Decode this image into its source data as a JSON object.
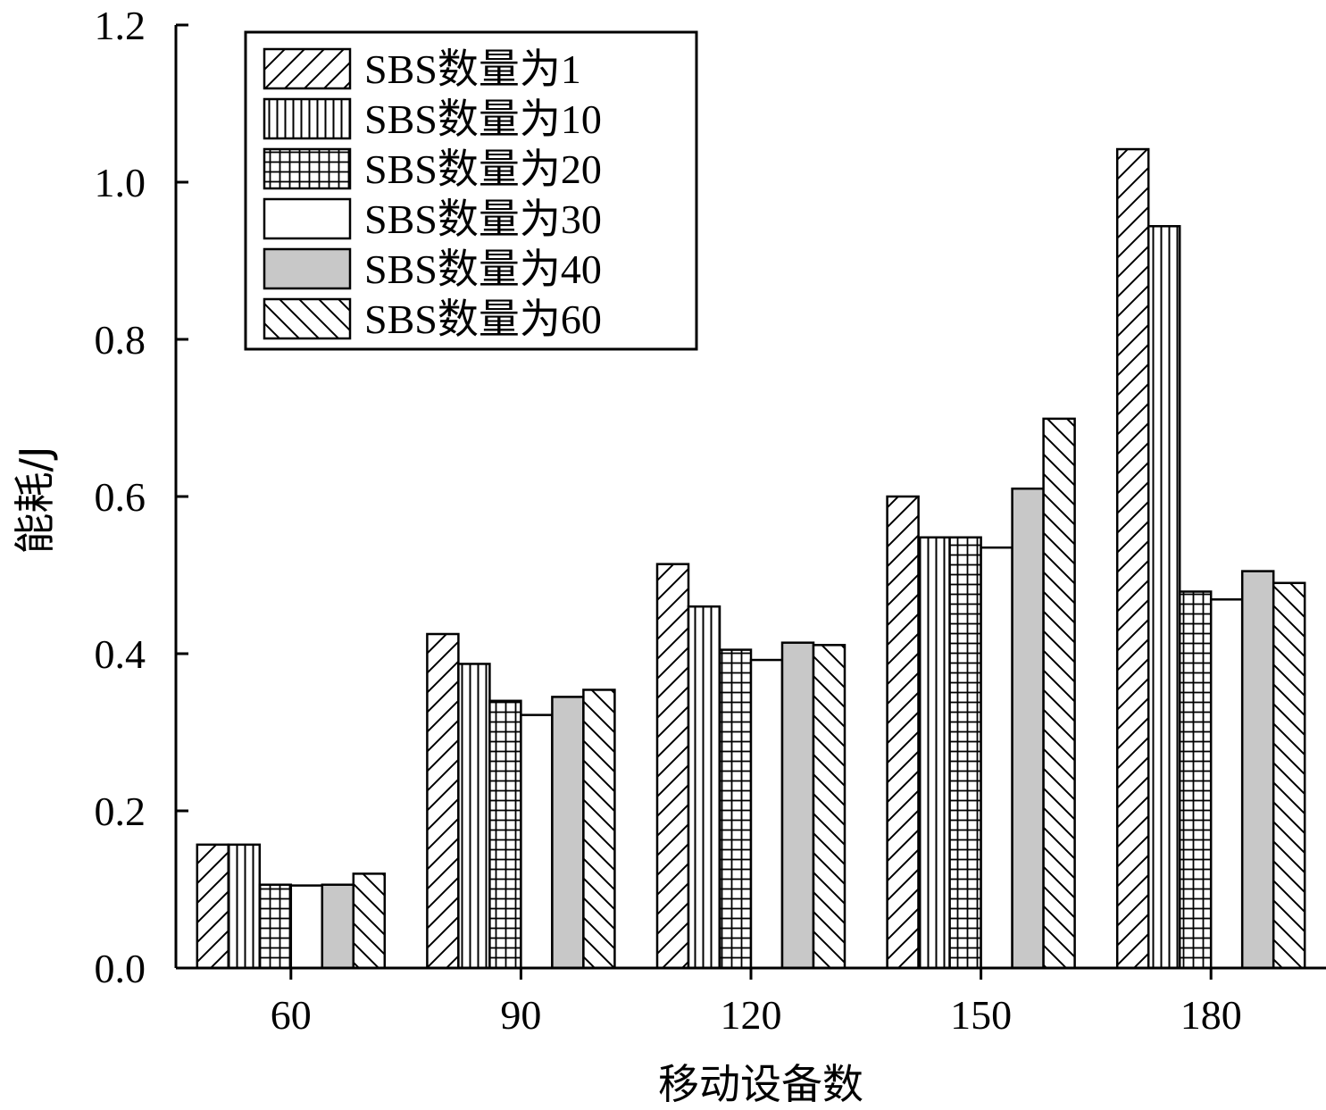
{
  "chart_data": {
    "type": "bar",
    "title": "",
    "xlabel": "移动设备数",
    "ylabel": "能耗/J",
    "categories": [
      "60",
      "90",
      "120",
      "150",
      "180"
    ],
    "ylim": [
      0,
      1.2
    ],
    "yticks": [
      "0.0",
      "0.2",
      "0.4",
      "0.6",
      "0.8",
      "1.0",
      "1.2"
    ],
    "legend_position": "top-left",
    "grid": false,
    "series": [
      {
        "name": "SBS数量为1",
        "pattern": "diag-up",
        "fill": "#ffffff",
        "values": [
          0.157,
          0.425,
          0.514,
          0.6,
          1.042
        ]
      },
      {
        "name": "SBS数量为10",
        "pattern": "vertical",
        "fill": "#ffffff",
        "values": [
          0.157,
          0.387,
          0.46,
          0.548,
          0.944
        ]
      },
      {
        "name": "SBS数量为20",
        "pattern": "grid",
        "fill": "#ffffff",
        "values": [
          0.106,
          0.34,
          0.405,
          0.548,
          0.479
        ]
      },
      {
        "name": "SBS数量为30",
        "pattern": "none",
        "fill": "#ffffff",
        "values": [
          0.105,
          0.322,
          0.392,
          0.535,
          0.469
        ]
      },
      {
        "name": "SBS数量为40",
        "pattern": "none",
        "fill": "#c8c8c8",
        "values": [
          0.106,
          0.345,
          0.414,
          0.61,
          0.505
        ]
      },
      {
        "name": "SBS数量为60",
        "pattern": "diag-down",
        "fill": "#ffffff",
        "values": [
          0.12,
          0.354,
          0.411,
          0.699,
          0.49
        ]
      }
    ]
  }
}
